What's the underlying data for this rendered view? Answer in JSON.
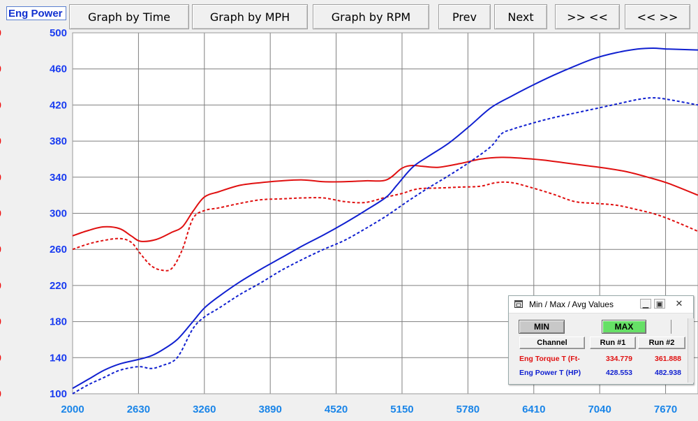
{
  "toolbar": {
    "channel_value": "Eng Power",
    "buttons": {
      "time": "Graph by Time",
      "mph": "Graph by MPH",
      "rpm": "Graph by RPM",
      "prev": "Prev",
      "next": "Next",
      "zoom_in": ">> <<",
      "zoom_out": "<< >>"
    }
  },
  "colors": {
    "torque": "#e01010",
    "power": "#1020d0",
    "grid": "#7f7f7f",
    "y_tick": "#1a3cf0",
    "x_tick": "#1a85e8",
    "max_button": "#66e066"
  },
  "chart_data": {
    "type": "line",
    "x_axis": {
      "ticks": [
        2000,
        2630,
        3260,
        3890,
        4520,
        5150,
        5780,
        6410,
        7040,
        7670
      ],
      "range": [
        2000,
        7980
      ]
    },
    "y_axis": {
      "ticks": [
        100,
        140,
        180,
        220,
        260,
        300,
        340,
        380,
        420,
        460,
        500
      ],
      "range": [
        100,
        500
      ]
    },
    "grid": true,
    "series": [
      {
        "name": "Eng Torque T (Ft-",
        "run": "Run #2",
        "color": "#e01010",
        "dashed": false,
        "x": [
          2000,
          2150,
          2300,
          2450,
          2560,
          2650,
          2800,
          2950,
          3050,
          3150,
          3260,
          3400,
          3600,
          3800,
          4000,
          4200,
          4400,
          4600,
          4800,
          5000,
          5150,
          5250,
          5350,
          5500,
          5700,
          5900,
          6100,
          6300,
          6500,
          6700,
          6900,
          7100,
          7300,
          7500,
          7700,
          7980
        ],
        "y": [
          275,
          281,
          285,
          283,
          275,
          269,
          271,
          279,
          285,
          302,
          318,
          324,
          331,
          334,
          336,
          337,
          335,
          335,
          336,
          337,
          350,
          353,
          352,
          351,
          355,
          360,
          362,
          361,
          359,
          356,
          353,
          350,
          346,
          340,
          333,
          320
        ]
      },
      {
        "name": "Eng Torque T (Ft-",
        "run": "Run #1",
        "color": "#e01010",
        "dashed": true,
        "x": [
          2000,
          2150,
          2300,
          2450,
          2560,
          2650,
          2750,
          2850,
          2950,
          3050,
          3150,
          3260,
          3400,
          3600,
          3800,
          4000,
          4200,
          4400,
          4600,
          4800,
          5000,
          5150,
          5300,
          5500,
          5700,
          5900,
          6050,
          6200,
          6400,
          6600,
          6800,
          7000,
          7200,
          7400,
          7600,
          7800,
          7980
        ],
        "y": [
          260,
          266,
          270,
          272,
          268,
          255,
          242,
          237,
          239,
          260,
          294,
          303,
          306,
          311,
          315,
          316,
          317,
          317,
          313,
          312,
          318,
          322,
          327,
          328,
          329,
          330,
          334,
          334,
          328,
          321,
          313,
          311,
          309,
          304,
          298,
          289,
          280
        ]
      },
      {
        "name": "Eng Power T (HP)",
        "run": "Run #2",
        "color": "#1020d0",
        "dashed": false,
        "x": [
          2000,
          2150,
          2300,
          2450,
          2630,
          2750,
          2850,
          3000,
          3150,
          3260,
          3400,
          3600,
          3800,
          4000,
          4200,
          4400,
          4600,
          4800,
          5000,
          5100,
          5250,
          5400,
          5600,
          5800,
          6000,
          6200,
          6400,
          6600,
          6800,
          7000,
          7200,
          7400,
          7550,
          7700,
          7980
        ],
        "y": [
          106,
          116,
          126,
          133,
          138,
          142,
          148,
          160,
          180,
          195,
          208,
          224,
          238,
          251,
          264,
          276,
          289,
          303,
          318,
          331,
          351,
          363,
          378,
          397,
          417,
          430,
          442,
          453,
          463,
          472,
          478,
          482,
          483,
          482,
          481
        ]
      },
      {
        "name": "Eng Power T (HP)",
        "run": "Run #1",
        "color": "#1020d0",
        "dashed": true,
        "x": [
          2000,
          2150,
          2300,
          2450,
          2630,
          2750,
          2850,
          3000,
          3150,
          3260,
          3400,
          3600,
          3800,
          4000,
          4200,
          4400,
          4600,
          4800,
          5000,
          5200,
          5400,
          5600,
          5800,
          6000,
          6100,
          6200,
          6400,
          6600,
          6800,
          7000,
          7200,
          7400,
          7550,
          7700,
          7980
        ],
        "y": [
          100,
          110,
          118,
          126,
          130,
          128,
          131,
          140,
          172,
          185,
          195,
          210,
          223,
          237,
          249,
          260,
          270,
          283,
          297,
          313,
          328,
          342,
          357,
          374,
          388,
          393,
          400,
          406,
          411,
          416,
          421,
          426,
          428,
          426,
          420
        ]
      }
    ]
  },
  "popup": {
    "title": "Min / Max / Avg Values",
    "min_label": "MIN",
    "max_label": "MAX",
    "headers": [
      "Channel",
      "Run #1",
      "Run #2"
    ],
    "rows": [
      {
        "channel": "Eng Torque T (Ft-",
        "run1": "334.779",
        "run2": "361.888",
        "color": "#e01010"
      },
      {
        "channel": "Eng Power T (HP)",
        "run1": "428.553",
        "run2": "482.938",
        "color": "#1020d0"
      }
    ]
  }
}
